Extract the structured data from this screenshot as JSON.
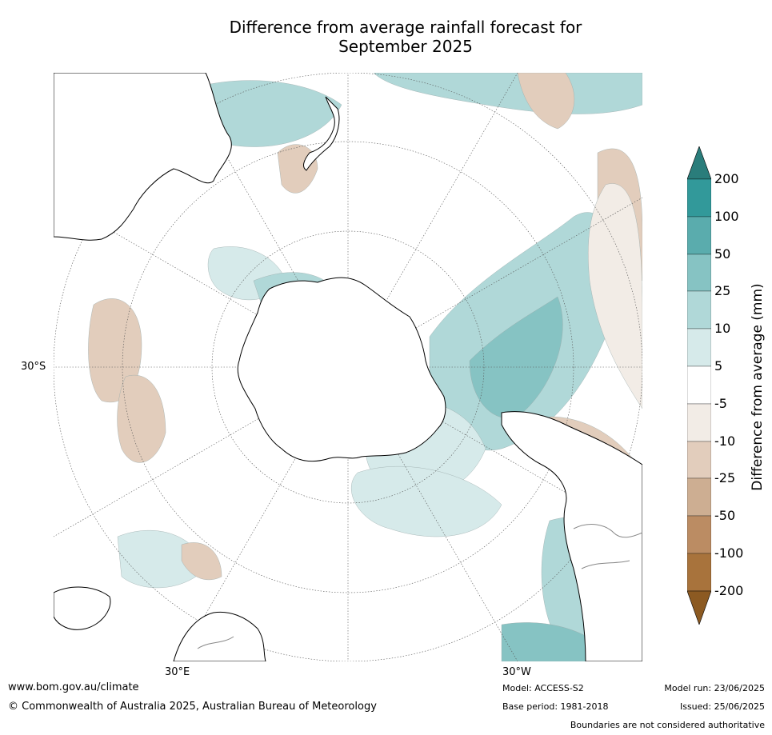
{
  "title_line1": "Difference from average rainfall forecast for",
  "title_line2": "September 2025",
  "map": {
    "projection": "south-polar-stereographic",
    "lat_label": "30°S",
    "lon_label_left": "30°E",
    "lon_label_right": "30°W",
    "colors": {
      "ocean": "#ffffff",
      "coast": "#000000",
      "border": "#888888",
      "graticule": "#555555"
    }
  },
  "colorbar": {
    "title": "Difference from average (mm)",
    "labels": [
      "200",
      "100",
      "50",
      "25",
      "10",
      "5",
      "-5",
      "-10",
      "-25",
      "-50",
      "-100",
      "-200"
    ],
    "colors": [
      "#2a7d7b",
      "#32999a",
      "#5aacad",
      "#86c3c3",
      "#b0d8d8",
      "#d6eaea",
      "#ffffff",
      "#f2ece6",
      "#e2cdbc",
      "#cdae92",
      "#bb8c63",
      "#a8733c",
      "#8c5a22"
    ]
  },
  "footer": {
    "website": "www.bom.gov.au/climate",
    "copyright": "© Commonwealth of Australia 2025, Australian Bureau of Meteorology",
    "model": "Model: ACCESS-S2",
    "base_period": "Base period: 1981-2018",
    "model_run": "Model run: 23/06/2025",
    "issued": "Issued: 25/06/2025",
    "disclaimer": "Boundaries are not considered authoritative"
  }
}
